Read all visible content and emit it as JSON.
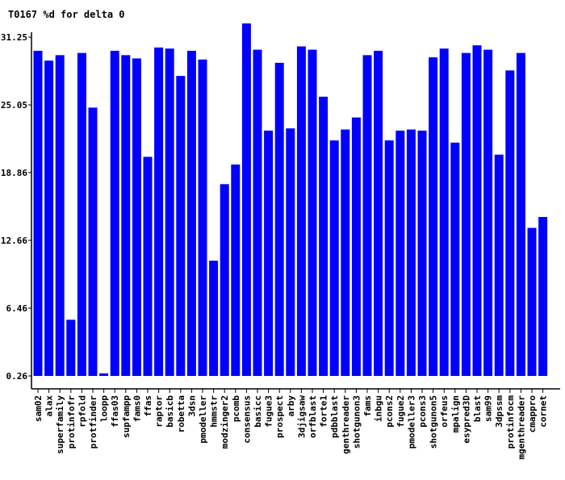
{
  "chart_data": {
    "type": "bar",
    "title": "T0167 %d for delta 0",
    "xlabel": "",
    "ylabel": "",
    "ylim": [
      0.26,
      31.25
    ],
    "yticks": [
      "0.26",
      "6.46",
      "12.66",
      "18.86",
      "25.05",
      "31.25"
    ],
    "grid": false,
    "bar_color": "#0000ff",
    "categories": [
      "sam02",
      "alax",
      "superfamily",
      "protinfofr",
      "rpfold",
      "protfinder",
      "loopp",
      "ffas03",
      "supfampp",
      "fams0",
      "ffas",
      "raptor",
      "basicb",
      "robetta",
      "3dsn",
      "pmodeller",
      "hmmstr",
      "modzinger2",
      "pcomb",
      "consensus",
      "basicc",
      "fugue3",
      "prospect",
      "arby",
      "3djigsaw",
      "orfblast",
      "forte1",
      "pdbblast",
      "genthreader",
      "shotgunon3",
      "fams",
      "inbgu",
      "pcons2",
      "fugue2",
      "pmodeller3",
      "pcons3",
      "shotgunon5",
      "orfeus",
      "mpalign",
      "esypred3D",
      "blast",
      "sam99",
      "3dpssm",
      "protinfocm",
      "mgenthreader",
      "cmappro",
      "cornet"
    ],
    "values": [
      30.0,
      29.1,
      29.6,
      5.4,
      29.8,
      24.8,
      0.5,
      30.0,
      29.6,
      29.3,
      20.3,
      30.3,
      30.2,
      27.7,
      30.0,
      29.2,
      10.8,
      17.8,
      19.6,
      32.5,
      30.1,
      22.7,
      28.9,
      22.9,
      30.4,
      30.1,
      25.8,
      21.8,
      22.8,
      23.9,
      29.6,
      30.0,
      21.8,
      22.7,
      22.8,
      22.7,
      29.4,
      30.2,
      21.6,
      29.8,
      30.5,
      30.1,
      20.5,
      28.2,
      29.8,
      13.8,
      14.8
    ]
  }
}
